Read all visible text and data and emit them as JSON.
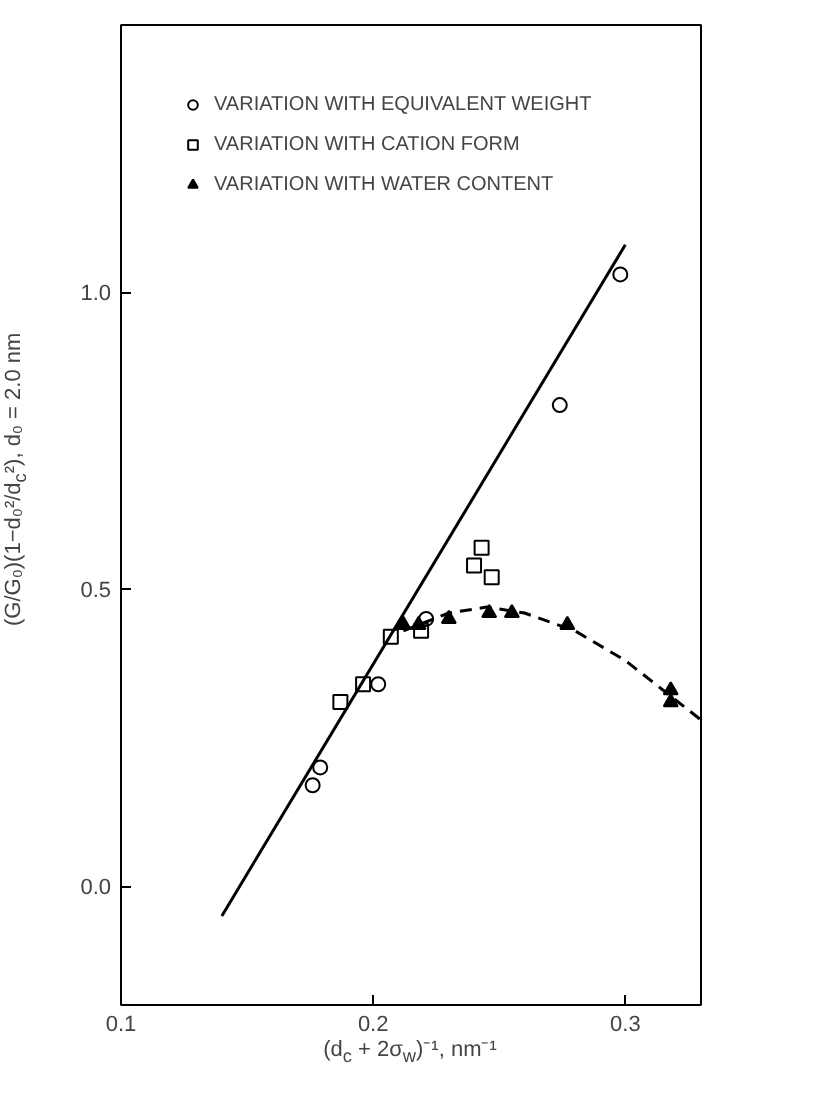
{
  "chart_data": {
    "type": "scatter",
    "xlabel": "(d$_{c}$ + 2σ$_{w}$)⁻¹, nm⁻¹",
    "ylabel": "(G/G₀)(1−d₀²/d$_{c}$²), d₀ = 2.0 nm",
    "xlim": [
      0.1,
      0.33
    ],
    "ylim": [
      -0.2,
      1.45
    ],
    "xticks": [
      0.1,
      0.2,
      0.3
    ],
    "yticks": [
      {
        "value": 0,
        "label": "0.0"
      },
      {
        "value": 0.5,
        "label": "0.5"
      },
      {
        "value": 1,
        "label": "1.0"
      }
    ],
    "grid": false,
    "legend": "top left",
    "series": [
      {
        "name": "VARIATION WITH EQUIVALENT WEIGHT",
        "color": "#000000",
        "marker": "circle",
        "x": [
          0.176,
          0.179,
          0.202,
          0.221,
          0.274,
          0.298
        ],
        "values": [
          0.17,
          0.2,
          0.34,
          0.45,
          0.81,
          1.03
        ]
      },
      {
        "name": "VARIATION WITH CATION FORM",
        "color": "#000000",
        "marker": "square",
        "x": [
          0.187,
          0.196,
          0.207,
          0.219,
          0.24,
          0.243,
          0.247
        ],
        "values": [
          0.31,
          0.34,
          0.42,
          0.43,
          0.54,
          0.57,
          0.52
        ]
      },
      {
        "name": "VARIATION WITH WATER CONTENT",
        "color": "#000000",
        "marker": "triangle",
        "x": [
          0.212,
          0.218,
          0.23,
          0.246,
          0.255,
          0.277,
          0.318,
          0.318
        ],
        "values": [
          0.44,
          0.44,
          0.45,
          0.46,
          0.46,
          0.44,
          0.33,
          0.31
        ]
      },
      {
        "type": "line",
        "color": "#000000",
        "line_style": "solid",
        "x": [
          0.14,
          0.3
        ],
        "values": [
          -0.05,
          1.08
        ]
      },
      {
        "type": "line",
        "color": "#000000",
        "line_style": "dashed",
        "x": [
          0.212,
          0.23,
          0.245,
          0.26,
          0.28,
          0.3,
          0.318,
          0.33
        ],
        "values": [
          0.43,
          0.46,
          0.47,
          0.46,
          0.43,
          0.38,
          0.32,
          0.28
        ]
      }
    ]
  }
}
